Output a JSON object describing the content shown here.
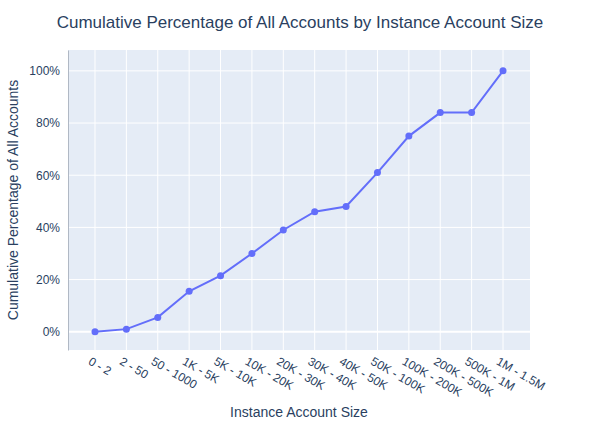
{
  "chart_data": {
    "type": "line",
    "title": "Cumulative Percentage of All Accounts by Instance Account Size",
    "x_label": "Instance Account Size",
    "y_label": "Cumulative Percentage of All Accounts",
    "categories": [
      "0 - 2",
      "2 - 50",
      "50 - 1000",
      "1K - 5K",
      "5K - 10K",
      "10K - 20K",
      "20K - 30K",
      "30K - 40K",
      "40K - 50K",
      "50K - 100K",
      "100K - 200K",
      "200K - 500K",
      "500K - 1M",
      "1M - 1.5M"
    ],
    "values": [
      0,
      1,
      5.5,
      15.5,
      21.5,
      30,
      39,
      46,
      48,
      61,
      75,
      84,
      84,
      100
    ],
    "color": "#636efa",
    "marker": "circle",
    "line_style": "solid",
    "ylim": [
      -7,
      108
    ],
    "yticks": [
      {
        "value": 0,
        "label": "0%"
      },
      {
        "value": 20,
        "label": "20%"
      },
      {
        "value": 40,
        "label": "40%"
      },
      {
        "value": 60,
        "label": "60%"
      },
      {
        "value": 80,
        "label": "80%"
      },
      {
        "value": 100,
        "label": "100%"
      }
    ],
    "grid": true
  }
}
